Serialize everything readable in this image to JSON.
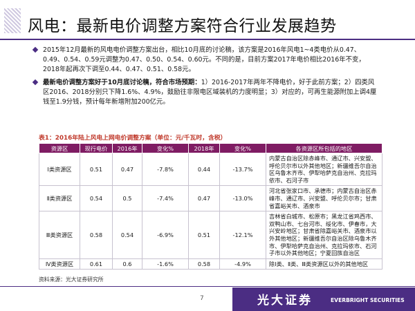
{
  "slide": {
    "title": "风电：最新电价调整方案符合行业发展趋势",
    "page_number": "7"
  },
  "bullets": [
    {
      "text": "2015年12月最新的风电电价调整方案出台，相比10月底的讨论稿，该方案是2016年风电1~4类电价从0.47、0.49、0.54、0.59元调整为0.47、0.50、0.54、0.60元。不同的是，目前方案2017年电价相比2016年不变，2018年起再次下调至0.44、0.47、0.51、0.58元。"
    },
    {
      "emphasis": "最新电价调整方案好于10月底讨论稿，符合市场预期：",
      "text": "1）2016-2017年两年不降电价，好于此前方案；2）四类风区2016、2018分别只下降1.6%、4.9%，鼓励往非限电区域装机的力度明显；3）对应的，可再生能源附加上调4厘钱至1.9分钱，预计每年新增附加200亿元。"
    }
  ],
  "table": {
    "caption": "表1：2016年陆上风电上网电价调整方案（单位：元/千瓦时，含税）",
    "headers": [
      "资源区",
      "现行电价",
      "2016年",
      "变化%",
      "2018年",
      "变化%",
      "各资源区所包括的地区"
    ],
    "rows": [
      {
        "zone": "Ⅰ类资源区",
        "current": "0.51",
        "y2016": "0.47",
        "chg2016": "-7.8%",
        "y2018": "0.44",
        "chg2018": "-13.7%",
        "regions": "内蒙古自治区除赤峰市、通辽市、兴安盟、呼伦贝尔市以外其他地区；新疆维吾尔自治区乌鲁木齐市、伊犁哈萨克自治州、克拉玛依市、石河子市"
      },
      {
        "zone": "Ⅱ类资源区",
        "current": "0.54",
        "y2016": "0.5",
        "chg2016": "-7.4%",
        "y2018": "0.47",
        "chg2018": "-13.0%",
        "regions": "河北省张家口市、承德市；内蒙古自治区赤峰市、通辽市、兴安盟、呼伦贝尔市；甘肃省嘉峪关市、酒泉市"
      },
      {
        "zone": "Ⅲ类资源区",
        "current": "0.58",
        "y2016": "0.54",
        "chg2016": "-6.9%",
        "y2018": "0.51",
        "chg2018": "-12.1%",
        "regions": "吉林省白城市、松原市；黑龙江省鸡西市、双鸭山市、七台河市、绥化市、伊春市，大兴安岭地区；甘肃省除嘉峪关市、酒泉市以外其他地区；新疆维吾尔自治区除乌鲁木齐市、伊犁哈萨克自治州、克拉玛依市、石河子市以外其他地区；宁夏回族自治区"
      },
      {
        "zone": "Ⅳ类资源区",
        "current": "0.61",
        "y2016": "0.6",
        "chg2016": "-1.6%",
        "y2018": "0.58",
        "chg2018": "-4.9%",
        "regions": "除Ⅰ类、Ⅱ类、Ⅲ类资源区以外的其他地区"
      }
    ],
    "source": "资料来源：光大证券研究所"
  },
  "footer": {
    "logo_cn": "光大证券",
    "logo_en": "EVERBRIGHT SECURITIES"
  },
  "colors": {
    "accent": "#4b2d83",
    "table_header": "#7f1c63",
    "caption": "#c0392b"
  }
}
